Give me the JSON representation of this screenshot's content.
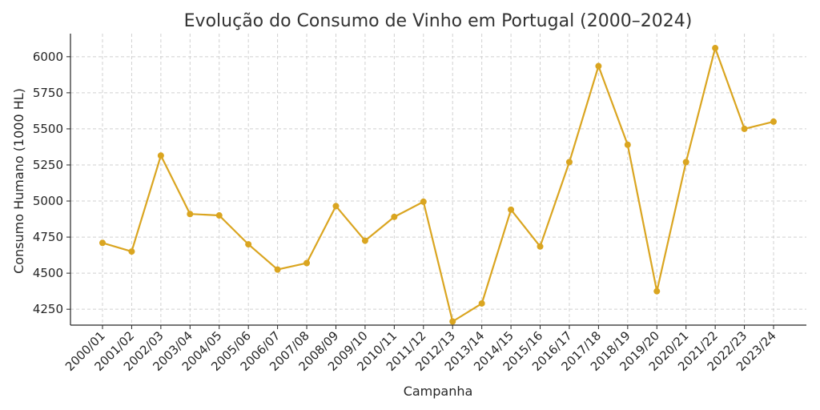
{
  "chart_data": {
    "type": "line",
    "title": "Evolução do Consumo de Vinho em Portugal (2000–2024)",
    "xlabel": "Campanha",
    "ylabel": "Consumo Humano (1000 HL)",
    "categories": [
      "2000/01",
      "2001/02",
      "2002/03",
      "2003/04",
      "2004/05",
      "2005/06",
      "2006/07",
      "2007/08",
      "2008/09",
      "2009/10",
      "2010/11",
      "2011/12",
      "2012/13",
      "2013/14",
      "2014/15",
      "2015/16",
      "2016/17",
      "2017/18",
      "2018/19",
      "2019/20",
      "2020/21",
      "2021/22",
      "2022/23",
      "2023/24"
    ],
    "series": [
      {
        "color": "#DAA520",
        "values": [
          4710,
          4650,
          5315,
          4910,
          4900,
          4700,
          4525,
          4570,
          4965,
          4725,
          4890,
          4995,
          4165,
          4290,
          4940,
          4685,
          5270,
          5935,
          5390,
          4375,
          5270,
          6060,
          5500,
          5550
        ]
      }
    ],
    "ylim": [
      4140,
      6160
    ],
    "yticks": [
      4250,
      4500,
      4750,
      5000,
      5250,
      5500,
      5750,
      6000
    ],
    "grid": true
  }
}
